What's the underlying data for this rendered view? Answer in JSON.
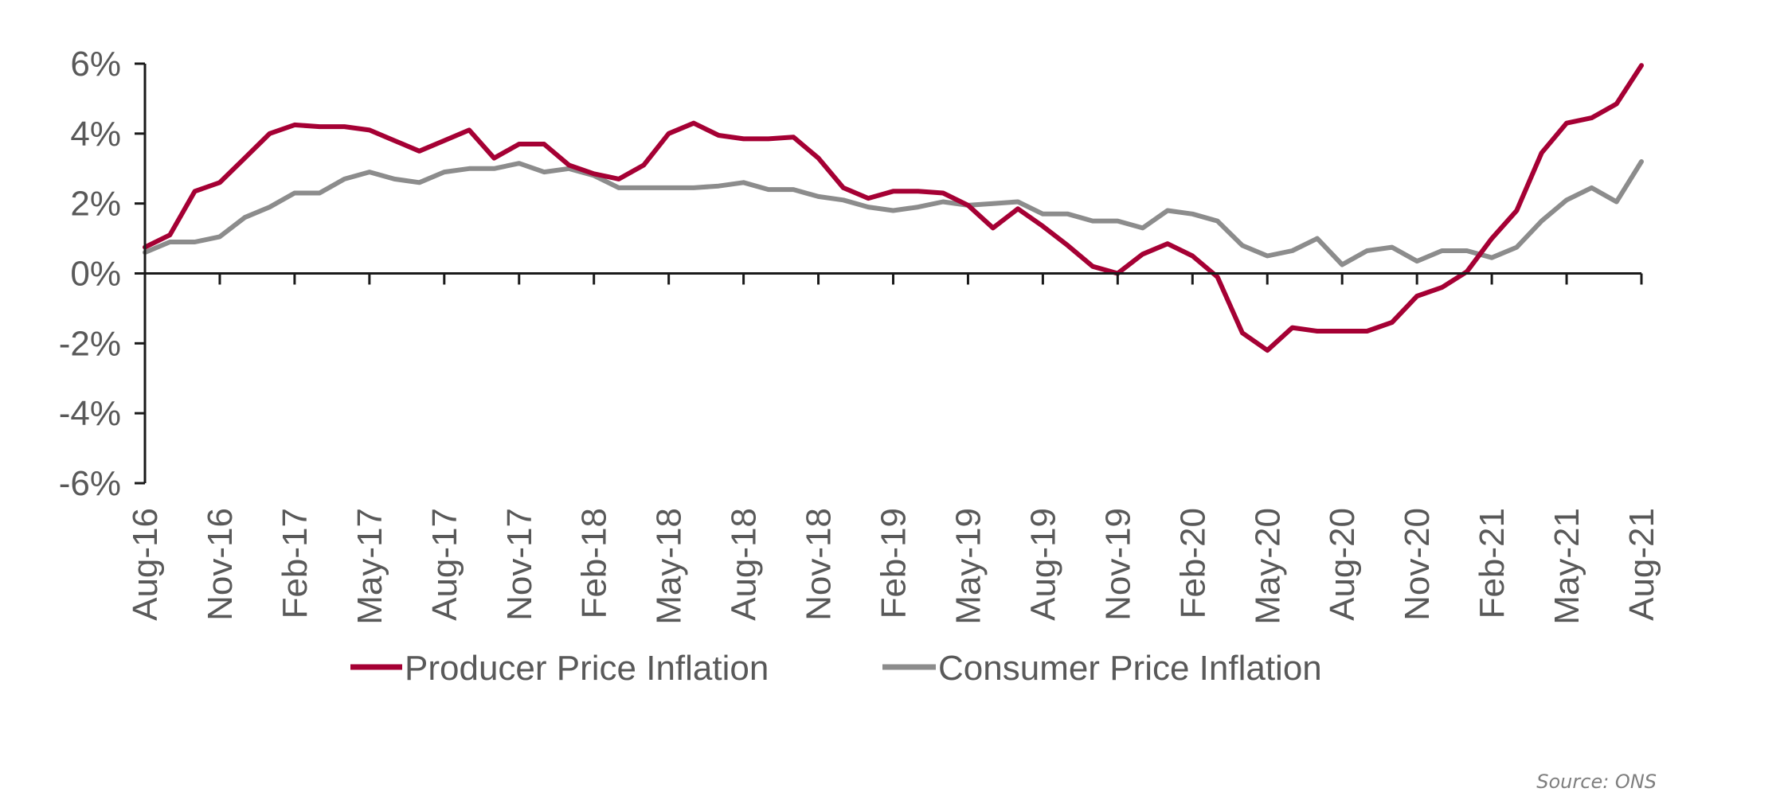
{
  "chart_data": {
    "type": "line",
    "title": "",
    "xlabel": "",
    "ylabel": "",
    "ylim": [
      -6,
      6
    ],
    "yticks": [
      6,
      4,
      2,
      0,
      -2,
      -4,
      -6
    ],
    "ytick_labels": [
      "6%",
      "4%",
      "2%",
      "0%",
      "-2%",
      "-4%",
      "-6%"
    ],
    "grid": false,
    "x": [
      "Aug-16",
      "Sep-16",
      "Oct-16",
      "Nov-16",
      "Dec-16",
      "Jan-17",
      "Feb-17",
      "Mar-17",
      "Apr-17",
      "May-17",
      "Jun-17",
      "Jul-17",
      "Aug-17",
      "Sep-17",
      "Oct-17",
      "Nov-17",
      "Dec-17",
      "Jan-18",
      "Feb-18",
      "Mar-18",
      "Apr-18",
      "May-18",
      "Jun-18",
      "Jul-18",
      "Aug-18",
      "Sep-18",
      "Oct-18",
      "Nov-18",
      "Dec-18",
      "Jan-19",
      "Feb-19",
      "Mar-19",
      "Apr-19",
      "May-19",
      "Jun-19",
      "Jul-19",
      "Aug-19",
      "Sep-19",
      "Oct-19",
      "Nov-19",
      "Dec-19",
      "Jan-20",
      "Feb-20",
      "Mar-20",
      "Apr-20",
      "May-20",
      "Jun-20",
      "Jul-20",
      "Aug-20",
      "Sep-20",
      "Oct-20",
      "Nov-20",
      "Dec-20",
      "Jan-21",
      "Feb-21",
      "Mar-21",
      "Apr-21",
      "May-21",
      "Jun-21",
      "Jul-21",
      "Aug-21"
    ],
    "xtick_labels": [
      "Aug-16",
      "Nov-16",
      "Feb-17",
      "May-17",
      "Aug-17",
      "Nov-17",
      "Feb-18",
      "May-18",
      "Aug-18",
      "Nov-18",
      "Feb-19",
      "May-19",
      "Aug-19",
      "Nov-19",
      "Feb-20",
      "May-20",
      "Aug-20",
      "Nov-20",
      "Feb-21",
      "May-21",
      "Aug-21"
    ],
    "xtick_every": 3,
    "series": [
      {
        "name": "Producer Price Inflation",
        "color": "#A50034",
        "values": [
          0.75,
          1.1,
          2.35,
          2.6,
          3.3,
          4.0,
          4.25,
          4.2,
          4.2,
          4.1,
          3.8,
          3.5,
          3.8,
          4.1,
          3.3,
          3.7,
          3.7,
          3.1,
          2.85,
          2.7,
          3.1,
          4.0,
          4.3,
          3.95,
          3.85,
          3.85,
          3.9,
          3.3,
          2.45,
          2.15,
          2.35,
          2.35,
          2.3,
          1.95,
          1.3,
          1.85,
          1.35,
          0.8,
          0.2,
          0.0,
          0.55,
          0.85,
          0.5,
          -0.1,
          -1.7,
          -2.2,
          -1.55,
          -1.65,
          -1.65,
          -1.65,
          -1.4,
          -0.65,
          -0.4,
          0.05,
          1.0,
          1.8,
          3.45,
          4.3,
          4.45,
          4.85,
          5.95
        ]
      },
      {
        "name": "Consumer Price Inflation",
        "color": "#8C8C8C",
        "values": [
          0.6,
          0.9,
          0.9,
          1.05,
          1.6,
          1.9,
          2.3,
          2.3,
          2.7,
          2.9,
          2.7,
          2.6,
          2.9,
          3.0,
          3.0,
          3.15,
          2.9,
          3.0,
          2.8,
          2.45,
          2.45,
          2.45,
          2.45,
          2.5,
          2.6,
          2.4,
          2.4,
          2.2,
          2.1,
          1.9,
          1.8,
          1.9,
          2.05,
          1.95,
          2.0,
          2.05,
          1.7,
          1.7,
          1.5,
          1.5,
          1.3,
          1.8,
          1.7,
          1.5,
          0.8,
          0.5,
          0.65,
          1.0,
          0.25,
          0.65,
          0.75,
          0.35,
          0.65,
          0.65,
          0.45,
          0.75,
          1.5,
          2.1,
          2.45,
          2.05,
          3.2
        ]
      }
    ],
    "legend": {
      "position": "bottom",
      "entries": [
        "Producer Price Inflation",
        "Consumer Price Inflation"
      ]
    },
    "annotations": [
      "Source: ONS"
    ]
  },
  "source": "Source: ONS"
}
